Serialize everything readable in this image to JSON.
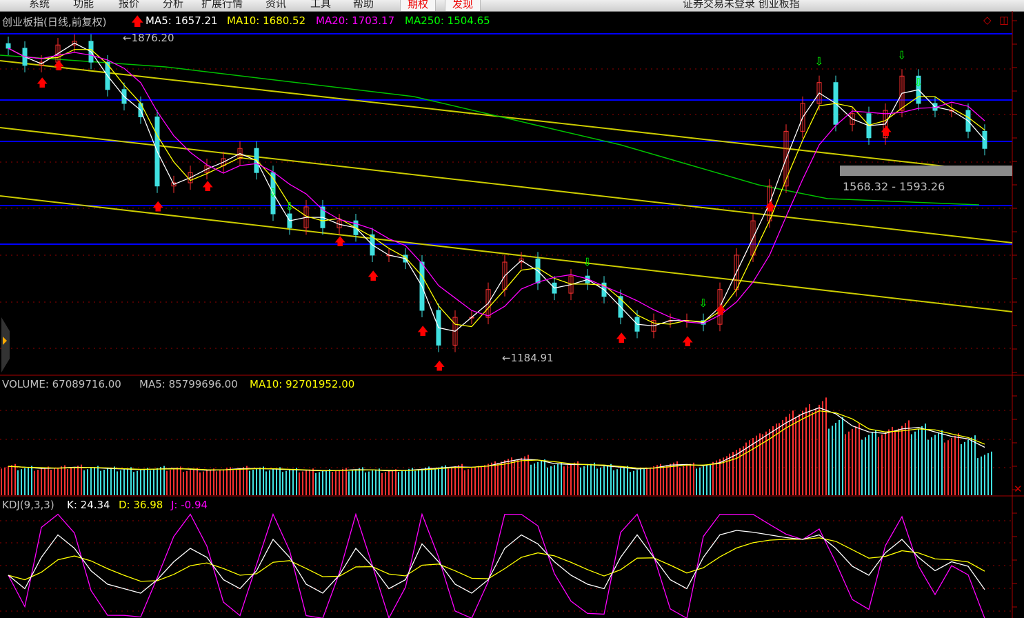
{
  "menu": [
    "系统",
    "功能",
    "报价",
    "分析",
    "扩展行情",
    "资讯",
    "工具",
    "帮助",
    "期权",
    "发现"
  ],
  "window_title": "证券交易未登录   创业板指",
  "price_panel": {
    "title": "创业板指(日线,前复权)",
    "ma5": "MA5: 1657.21",
    "ma10": "MA10: 1680.52",
    "ma20": "MA20: 1703.17",
    "ma250": "MA250: 1504.65",
    "high_label": "←1876.20",
    "low_label": "←1184.91",
    "range_label": "1568.32 - 1593.26"
  },
  "volume_panel": {
    "volume": "VOLUME: 67089716.00",
    "ma5": "MA5: 85799696.00",
    "ma10": "MA10: 92701952.00"
  },
  "kdj_panel": {
    "title": "KDJ(9,3,3)",
    "k": "K: 24.34",
    "d": "D: 36.98",
    "j": "J: -0.94"
  },
  "colors": {
    "up": "#ff3030",
    "down": "#40e0e0",
    "ma5": "#ffffff",
    "ma10": "#ffff00",
    "ma20": "#ff00ff",
    "ma250": "#00c000",
    "hline": "#0000ff",
    "trend": "#cccc00"
  },
  "chart_data": {
    "type": "candlestick",
    "period": "daily",
    "close": [
      1854,
      1817,
      1824,
      1861,
      1869,
      1824,
      1765,
      1735,
      1706,
      1557,
      1564,
      1586,
      1601,
      1616,
      1638,
      1586,
      1497,
      1467,
      1512,
      1467,
      1482,
      1452,
      1408,
      1408,
      1393,
      1289,
      1214,
      1274,
      1274,
      1334,
      1393,
      1400,
      1348,
      1326,
      1363,
      1348,
      1319,
      1274,
      1244,
      1267,
      1267,
      1267,
      1259,
      1334,
      1408,
      1482,
      1557,
      1675,
      1735,
      1780,
      1690,
      1713,
      1661,
      1720,
      1794,
      1735,
      1720,
      1720,
      1675,
      1638
    ],
    "volume_millions": [
      48,
      45,
      44,
      46,
      47,
      45,
      44,
      43,
      42,
      45,
      44,
      42,
      41,
      43,
      45,
      44,
      43,
      42,
      41,
      40,
      42,
      43,
      41,
      40,
      42,
      44,
      46,
      48,
      45,
      52,
      58,
      62,
      55,
      50,
      52,
      50,
      48,
      45,
      42,
      48,
      52,
      50,
      48,
      60,
      75,
      95,
      110,
      130,
      140,
      150,
      120,
      110,
      100,
      105,
      115,
      110,
      100,
      95,
      92,
      67
    ],
    "kdj_k": [
      40,
      25,
      60,
      85,
      70,
      45,
      30,
      25,
      20,
      35,
      55,
      70,
      60,
      35,
      25,
      45,
      80,
      60,
      30,
      20,
      40,
      70,
      50,
      25,
      35,
      75,
      55,
      30,
      20,
      35,
      70,
      85,
      75,
      55,
      40,
      30,
      25,
      60,
      85,
      60,
      35,
      25,
      60,
      85,
      90,
      88,
      85,
      82,
      80,
      85,
      70,
      50,
      40,
      65,
      80,
      60,
      45,
      55,
      50,
      24
    ]
  },
  "signals": {
    "buy": [
      2,
      3,
      9,
      12,
      20,
      22,
      25,
      26,
      37,
      41,
      43,
      46,
      53
    ],
    "sell": [
      16,
      17,
      35,
      42,
      49,
      55,
      54
    ]
  }
}
